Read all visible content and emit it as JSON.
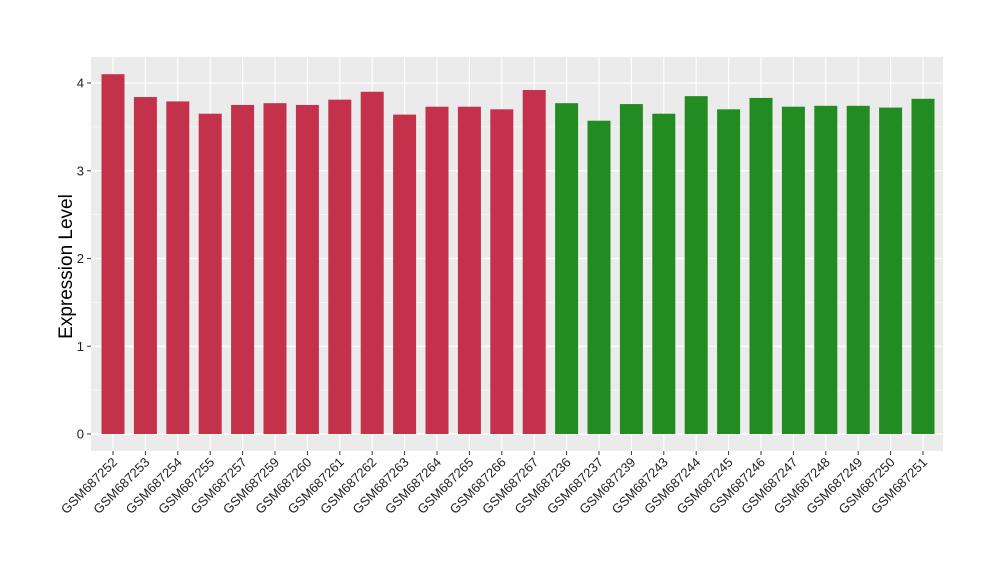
{
  "chart_data": {
    "type": "bar",
    "title": "",
    "xlabel": "",
    "ylabel": "Expression Level",
    "ylim": [
      0,
      4
    ],
    "yticks": [
      0,
      1,
      2,
      3,
      4
    ],
    "grid": true,
    "legend": "none",
    "background_color": "#EBEBEB",
    "grid_color": "#FFFFFF",
    "categories": [
      "GSM687252",
      "GSM687253",
      "GSM687254",
      "GSM687255",
      "GSM687257",
      "GSM687259",
      "GSM687260",
      "GSM687261",
      "GSM687262",
      "GSM687263",
      "GSM687264",
      "GSM687265",
      "GSM687266",
      "GSM687267",
      "GSM687236",
      "GSM687237",
      "GSM687239",
      "GSM687243",
      "GSM687244",
      "GSM687245",
      "GSM687246",
      "GSM687247",
      "GSM687248",
      "GSM687249",
      "GSM687250",
      "GSM687251"
    ],
    "values": [
      4.1,
      3.84,
      3.79,
      3.65,
      3.75,
      3.77,
      3.75,
      3.81,
      3.9,
      3.64,
      3.73,
      3.73,
      3.7,
      3.92,
      3.77,
      3.57,
      3.76,
      3.65,
      3.85,
      3.7,
      3.83,
      3.73,
      3.74,
      3.74,
      3.72,
      3.82
    ],
    "bar_colors": [
      "#C3314A",
      "#C3314A",
      "#C3314A",
      "#C3314A",
      "#C3314A",
      "#C3314A",
      "#C3314A",
      "#C3314A",
      "#C3314A",
      "#C3314A",
      "#C3314A",
      "#C3314A",
      "#C3314A",
      "#C3314A",
      "#228B22",
      "#228B22",
      "#228B22",
      "#228B22",
      "#228B22",
      "#228B22",
      "#228B22",
      "#228B22",
      "#228B22",
      "#228B22",
      "#228B22",
      "#228B22"
    ]
  }
}
